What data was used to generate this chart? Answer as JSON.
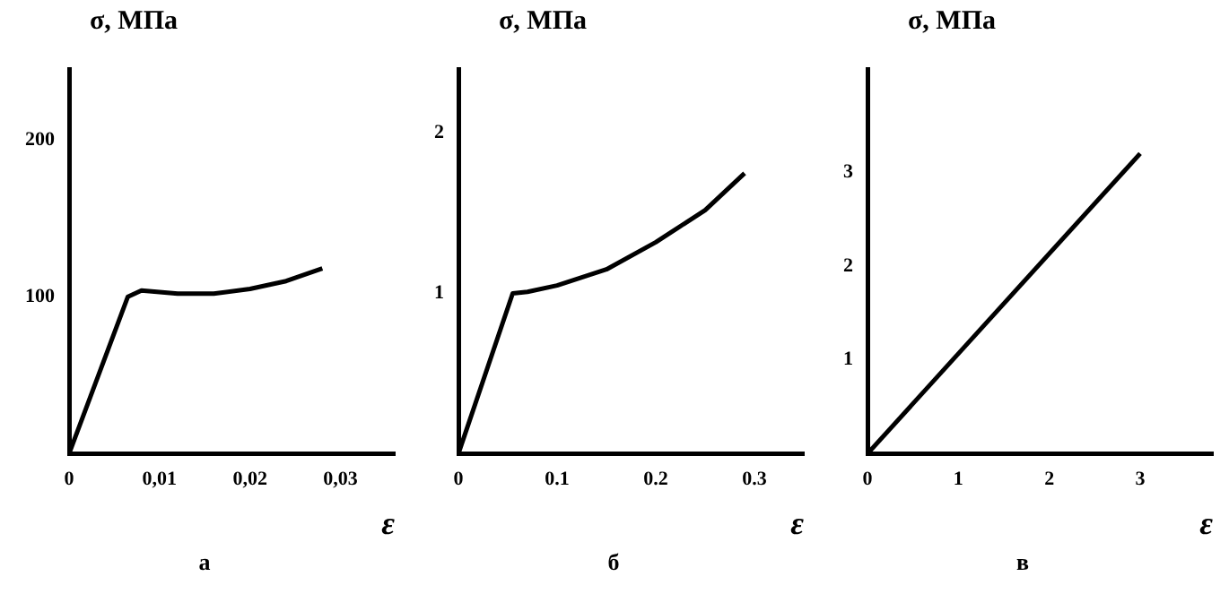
{
  "chart_data": [
    {
      "type": "line",
      "ylabel": "σ, МПа",
      "xlabel": "ε",
      "annotations": [
        "а"
      ],
      "color": "#000000",
      "marker": "none",
      "legend": false,
      "grid": false,
      "x": [
        0,
        0.0065,
        0.008,
        0.012,
        0.016,
        0.02,
        0.024,
        0.028
      ],
      "values": [
        0,
        100,
        104,
        102,
        102,
        105,
        110,
        118
      ],
      "xlim": [
        0,
        0.036
      ],
      "ylim": [
        0,
        245
      ],
      "xticks": [
        0,
        {
          "value": 0.01,
          "label": "0,01"
        },
        {
          "value": 0.02,
          "label": "0,02"
        },
        {
          "value": 0.03,
          "label": "0,03"
        }
      ],
      "yticks": [
        100,
        200
      ]
    },
    {
      "type": "line",
      "ylabel": "σ, МПа",
      "xlabel": "ε",
      "annotations": [
        "б"
      ],
      "color": "#000000",
      "marker": "none",
      "legend": false,
      "grid": false,
      "x": [
        0,
        0.055,
        0.07,
        0.1,
        0.15,
        0.2,
        0.25,
        0.29
      ],
      "values": [
        0,
        1.0,
        1.01,
        1.05,
        1.15,
        1.32,
        1.52,
        1.75
      ],
      "xlim": [
        0,
        0.35
      ],
      "ylim": [
        0,
        2.4
      ],
      "xticks": [
        0,
        0.1,
        0.2,
        0.3
      ],
      "yticks": [
        1,
        2
      ]
    },
    {
      "type": "line",
      "ylabel": "σ, МПа",
      "xlabel": "ε",
      "annotations": [
        "в"
      ],
      "color": "#000000",
      "marker": "none",
      "legend": false,
      "grid": false,
      "x": [
        0,
        3
      ],
      "values": [
        0,
        3.2
      ],
      "xlim": [
        0,
        3.8
      ],
      "ylim": [
        0,
        4.1
      ],
      "xticks": [
        0,
        1,
        2,
        3
      ],
      "yticks": [
        1,
        2,
        3
      ]
    }
  ]
}
